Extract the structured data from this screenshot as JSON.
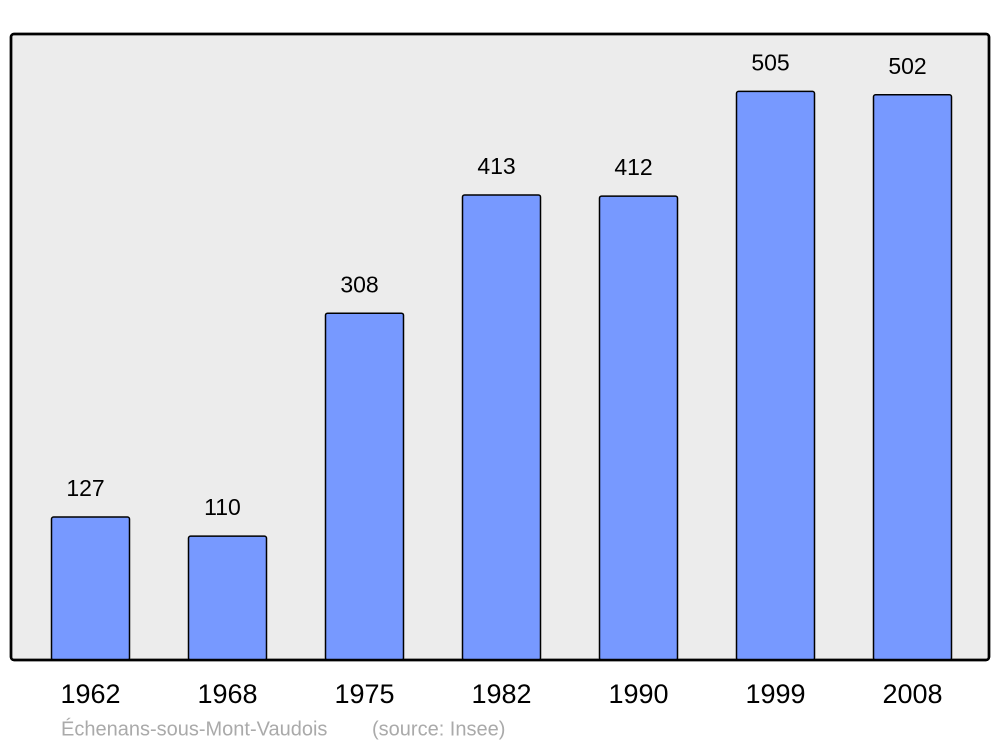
{
  "chart_data": {
    "type": "bar",
    "categories": [
      "1962",
      "1968",
      "1975",
      "1982",
      "1990",
      "1999",
      "2008"
    ],
    "values": [
      127,
      110,
      308,
      413,
      412,
      505,
      502
    ],
    "color": "#7799ff",
    "ylim": [
      0,
      556
    ],
    "subtitle": "Échenans-sous-Mont-Vaudois",
    "source": "(source: Insee)"
  }
}
